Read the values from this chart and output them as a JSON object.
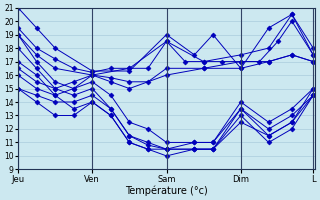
{
  "xlabel": "Température (°c)",
  "bg_color": "#cce8f0",
  "grid_color": "#aaccdd",
  "line_color": "#0000bb",
  "marker": "D",
  "marker_size": 2.5,
  "ylim": [
    9,
    21
  ],
  "yticks": [
    9,
    10,
    11,
    12,
    13,
    14,
    15,
    16,
    17,
    18,
    19,
    20,
    21
  ],
  "day_labels": [
    "Jeu",
    "Ven",
    "Sam",
    "Dim",
    "L"
  ],
  "day_positions": [
    0,
    80,
    160,
    240,
    318
  ],
  "series": [
    {
      "x": [
        0,
        20,
        40,
        80,
        120,
        160,
        190,
        210,
        240,
        270,
        295,
        318
      ],
      "y": [
        21.0,
        19.5,
        18.0,
        16.3,
        16.3,
        19.0,
        17.5,
        19.0,
        16.5,
        19.5,
        20.5,
        18.0
      ]
    },
    {
      "x": [
        0,
        20,
        40,
        60,
        80,
        100,
        120,
        140,
        160,
        180,
        200,
        220,
        240,
        260,
        280,
        295,
        318
      ],
      "y": [
        19.5,
        18.0,
        17.2,
        16.5,
        16.2,
        16.5,
        16.5,
        16.5,
        18.5,
        17.0,
        17.0,
        17.0,
        17.0,
        17.0,
        18.5,
        20.0,
        17.5
      ]
    },
    {
      "x": [
        0,
        20,
        40,
        80,
        120,
        160,
        200,
        240,
        270,
        295,
        318
      ],
      "y": [
        19.0,
        17.5,
        16.5,
        16.0,
        16.5,
        18.5,
        17.0,
        17.5,
        18.0,
        20.5,
        17.5
      ]
    },
    {
      "x": [
        0,
        20,
        40,
        60,
        80,
        100,
        120,
        140,
        160,
        200,
        240,
        270,
        295,
        318
      ],
      "y": [
        16.5,
        15.5,
        15.0,
        15.5,
        16.0,
        15.8,
        15.5,
        15.5,
        16.5,
        16.5,
        16.5,
        17.0,
        17.5,
        17.0
      ]
    },
    {
      "x": [
        0,
        20,
        40,
        60,
        80,
        100,
        120,
        160,
        200,
        240,
        270,
        295,
        318
      ],
      "y": [
        16.0,
        15.0,
        14.5,
        15.0,
        16.0,
        15.5,
        15.0,
        16.0,
        16.5,
        17.0,
        17.0,
        17.5,
        17.0
      ]
    },
    {
      "x": [
        0,
        20,
        40,
        60,
        80,
        100,
        120,
        140,
        160,
        190,
        210,
        240,
        270,
        295,
        318
      ],
      "y": [
        15.0,
        14.5,
        14.0,
        14.0,
        14.5,
        13.5,
        11.5,
        11.0,
        10.5,
        11.0,
        11.0,
        14.0,
        12.5,
        13.5,
        15.0
      ]
    },
    {
      "x": [
        0,
        20,
        40,
        60,
        80,
        100,
        120,
        140,
        160,
        190,
        210,
        240,
        270,
        295,
        318
      ],
      "y": [
        15.0,
        14.0,
        13.0,
        13.0,
        14.0,
        13.0,
        11.0,
        10.5,
        10.0,
        10.5,
        10.5,
        13.5,
        12.0,
        13.0,
        14.5
      ]
    },
    {
      "x": [
        0,
        20,
        40,
        60,
        80,
        100,
        120,
        140,
        160,
        190,
        210,
        240,
        270,
        295,
        318
      ],
      "y": [
        19.0,
        17.0,
        15.5,
        15.0,
        15.5,
        14.5,
        12.5,
        12.0,
        11.0,
        11.0,
        11.0,
        13.5,
        11.5,
        12.5,
        15.0
      ]
    },
    {
      "x": [
        0,
        20,
        40,
        60,
        80,
        100,
        120,
        140,
        160,
        190,
        210,
        240,
        270,
        295,
        318
      ],
      "y": [
        18.0,
        16.5,
        15.0,
        14.5,
        15.0,
        13.5,
        11.5,
        10.8,
        10.5,
        10.5,
        10.5,
        13.0,
        11.0,
        12.0,
        14.5
      ]
    },
    {
      "x": [
        0,
        20,
        40,
        60,
        80,
        100,
        120,
        140,
        160,
        190,
        210,
        240,
        270,
        295,
        318
      ],
      "y": [
        17.0,
        16.0,
        14.5,
        13.5,
        14.0,
        13.0,
        11.0,
        10.5,
        10.5,
        10.5,
        10.5,
        12.5,
        11.5,
        12.5,
        14.5
      ]
    }
  ]
}
